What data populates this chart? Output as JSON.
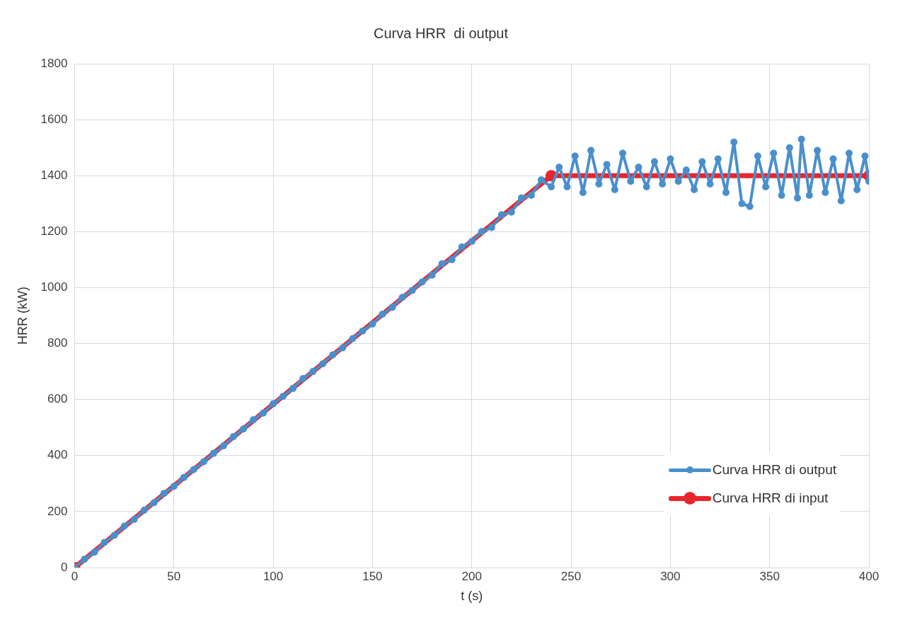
{
  "chart_data": {
    "type": "line",
    "title": "Curva HRR  di output",
    "xlabel": "t (s)",
    "ylabel": "HRR (kW)",
    "xlim": [
      0,
      400
    ],
    "xticks": [
      0,
      50,
      100,
      150,
      200,
      250,
      300,
      350,
      400
    ],
    "ylim": [
      0,
      1800
    ],
    "yticks": [
      0,
      200,
      400,
      600,
      800,
      1000,
      1200,
      1400,
      1600,
      1800
    ],
    "grid": true,
    "legend": "bottom right",
    "marker": "circle",
    "line_style": "solid",
    "series": [
      {
        "name": "Curva HRR di output",
        "color": "#4a8fcc",
        "x": [
          0,
          5,
          10,
          15,
          20,
          25,
          30,
          35,
          40,
          45,
          50,
          55,
          60,
          65,
          70,
          75,
          80,
          85,
          90,
          95,
          100,
          105,
          110,
          115,
          120,
          125,
          130,
          135,
          140,
          145,
          150,
          155,
          160,
          165,
          170,
          175,
          180,
          185,
          190,
          195,
          200,
          205,
          210,
          215,
          220,
          225,
          230,
          235,
          240,
          244,
          248,
          252,
          256,
          260,
          264,
          268,
          272,
          276,
          280,
          284,
          288,
          292,
          296,
          300,
          304,
          308,
          312,
          316,
          320,
          324,
          328,
          332,
          336,
          340,
          344,
          348,
          352,
          356,
          360,
          364,
          366,
          370,
          374,
          378,
          382,
          386,
          390,
          394,
          398,
          400
        ],
        "values": [
          0,
          30,
          55,
          90,
          115,
          148,
          172,
          205,
          232,
          265,
          290,
          322,
          350,
          378,
          408,
          435,
          468,
          495,
          528,
          552,
          585,
          612,
          640,
          675,
          700,
          728,
          760,
          785,
          818,
          845,
          870,
          905,
          930,
          965,
          990,
          1020,
          1045,
          1085,
          1100,
          1145,
          1165,
          1200,
          1215,
          1260,
          1270,
          1320,
          1330,
          1385,
          1360,
          1430,
          1360,
          1470,
          1340,
          1490,
          1370,
          1440,
          1350,
          1480,
          1380,
          1430,
          1360,
          1450,
          1370,
          1460,
          1380,
          1420,
          1350,
          1450,
          1370,
          1460,
          1340,
          1520,
          1300,
          1290,
          1470,
          1360,
          1480,
          1330,
          1500,
          1320,
          1530,
          1330,
          1490,
          1340,
          1460,
          1310,
          1480,
          1350,
          1470,
          1380
        ]
      },
      {
        "name": "Curva HRR di input",
        "color": "#e8262d",
        "x": [
          0,
          240,
          400
        ],
        "values": [
          0,
          1400,
          1400
        ]
      }
    ]
  }
}
